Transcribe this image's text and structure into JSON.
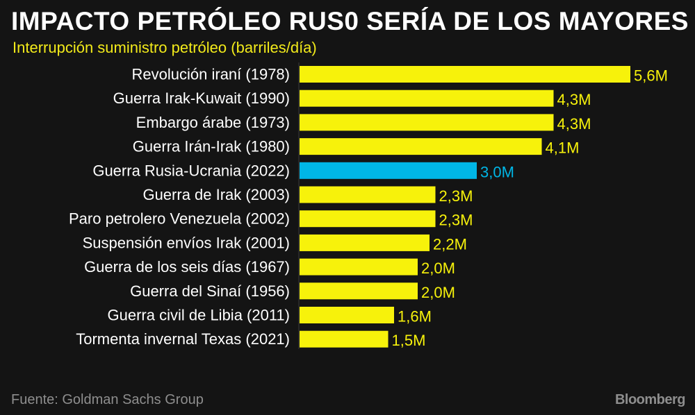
{
  "colors": {
    "bar": "#f7f20b",
    "highlight": "#00b6e6",
    "background": "#141414",
    "label": "#ffffff"
  },
  "header": {
    "title": "IMPACTO PETRÓLEO RUS0 SERÍA DE LOS MAYORES",
    "subtitle": "Interrupción suministro petróleo (barriles/día)"
  },
  "footer": {
    "source": "Fuente: Goldman Sachs Group",
    "brand": "Bloomberg"
  },
  "chart_data": {
    "type": "bar",
    "orientation": "horizontal",
    "title": "IMPACTO PETRÓLEO RUS0 SERÍA DE LOS MAYORES",
    "subtitle": "Interrupción suministro petróleo (barriles/día)",
    "unit": "millones de barriles/día",
    "xlim": [
      0,
      5.6
    ],
    "grid": false,
    "categories": [
      "Revolución iraní (1978)",
      "Guerra Irak-Kuwait (1990)",
      "Embargo árabe (1973)",
      "Guerra Irán-Irak (1980)",
      "Guerra Rusia-Ucrania (2022)",
      "Guerra de Irak (2003)",
      "Paro petrolero Venezuela (2002)",
      "Suspensión envíos Irak (2001)",
      "Guerra de los seis días (1967)",
      "Guerra del Sinaí (1956)",
      "Guerra civil de Libia (2011)",
      "Tormenta invernal Texas (2021)"
    ],
    "values": [
      5.6,
      4.3,
      4.3,
      4.1,
      3.0,
      2.3,
      2.3,
      2.2,
      2.0,
      2.0,
      1.6,
      1.5
    ],
    "value_labels": [
      "5,6M",
      "4,3M",
      "4,3M",
      "4,1M",
      "3,0M",
      "2,3M",
      "2,3M",
      "2,2M",
      "2,0M",
      "2,0M",
      "1,6M",
      "1,5M"
    ],
    "highlight_index": 4
  }
}
